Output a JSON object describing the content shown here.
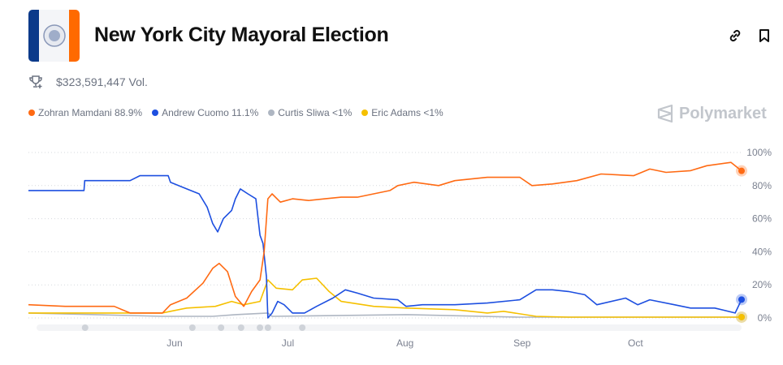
{
  "header": {
    "title": "New York City Mayoral Election",
    "volume": "$323,591,447 Vol.",
    "brand": "Polymarket"
  },
  "icons": {
    "link": "link-icon",
    "bookmark": "bookmark-icon",
    "trophy": "trophy-icon"
  },
  "legend": [
    {
      "label": "Zohran Mamdani 88.9%",
      "color": "#ff6a13"
    },
    {
      "label": "Andrew Cuomo 11.1%",
      "color": "#1d4fe0"
    },
    {
      "label": "Curtis Sliwa <1%",
      "color": "#aeb6c2"
    },
    {
      "label": "Eric Adams <1%",
      "color": "#f5c000"
    }
  ],
  "chart_data": {
    "type": "line",
    "x_unit": "days since Jun 1",
    "xlim": [
      -38.7,
      150.1
    ],
    "ylim": [
      0,
      100
    ],
    "y_ticks": [
      {
        "v": 100,
        "label": "100%"
      },
      {
        "v": 80,
        "label": "80%"
      },
      {
        "v": 60,
        "label": "60%"
      },
      {
        "v": 40,
        "label": "40%"
      },
      {
        "v": 20,
        "label": "20%"
      },
      {
        "v": 0,
        "label": "0%"
      }
    ],
    "x_ticks": [
      {
        "v": 0,
        "label": "Jun"
      },
      {
        "v": 30,
        "label": "Jul"
      },
      {
        "v": 61,
        "label": "Aug"
      },
      {
        "v": 92,
        "label": "Sep"
      },
      {
        "v": 122,
        "label": "Oct"
      }
    ],
    "grid": true,
    "series": [
      {
        "name": "Curtis Sliwa",
        "color": "#aeb6c2",
        "x": [
          -38.7,
          -3.2,
          10.1,
          16.1,
          24.7,
          25.8,
          61.3,
          91.4,
          150.1
        ],
        "y": [
          3,
          1,
          1,
          2,
          3,
          1,
          2,
          0.5,
          0.5
        ]
      },
      {
        "name": "Eric Adams",
        "color": "#f5c000",
        "x": [
          -38.7,
          -3.2,
          -1.1,
          3.2,
          10.8,
          15.1,
          18.3,
          22.6,
          24.7,
          26.9,
          31.2,
          33.8,
          37.6,
          40.9,
          44.1,
          52.7,
          61.3,
          74.2,
          82.8,
          87.1,
          95.7,
          104.3,
          150.1
        ],
        "y": [
          3,
          3,
          4,
          6,
          7,
          10,
          8,
          10,
          23,
          18,
          17,
          23,
          24,
          16,
          10,
          7,
          6,
          5,
          3,
          4,
          1,
          0.5,
          0.5
        ]
      },
      {
        "name": "Andrew Cuomo",
        "color": "#1d4fe0",
        "x": [
          -38.7,
          -24,
          -23.8,
          -11.8,
          -9.2,
          -1.7,
          -1.1,
          3.2,
          6.5,
          8.6,
          10.1,
          11.4,
          12.9,
          15.1,
          16.1,
          17.4,
          19.4,
          21.5,
          22.6,
          23.4,
          24.3,
          24.7,
          25.8,
          27.3,
          29,
          31.2,
          34.4,
          37.6,
          41.9,
          45.2,
          48.4,
          52.7,
          59.1,
          61.3,
          65.6,
          74.2,
          82.8,
          91.4,
          95.7,
          100,
          104.3,
          108.6,
          111.8,
          119.4,
          122.6,
          125.8,
          132.3,
          136.6,
          143,
          148.4,
          150.1
        ],
        "y": [
          77,
          77,
          83,
          83,
          86,
          86,
          82,
          78,
          75,
          67,
          57,
          52,
          60,
          65,
          72,
          78,
          75,
          72,
          50,
          45,
          25,
          0,
          3,
          10,
          8,
          3,
          3,
          7,
          12,
          17,
          15,
          12,
          11,
          7,
          8,
          8,
          9,
          11,
          17,
          17,
          16,
          14,
          8,
          12,
          8,
          11,
          8,
          6,
          6,
          3,
          11.1
        ]
      },
      {
        "name": "Zohran Mamdani",
        "color": "#ff6a13",
        "x": [
          -38.7,
          -29,
          -16,
          -11.8,
          -3.2,
          -1.1,
          3.2,
          7.5,
          10.1,
          11.8,
          14,
          16.1,
          18.3,
          20.4,
          22.6,
          23.7,
          24.7,
          25.8,
          28,
          31.2,
          35.5,
          39.8,
          44.1,
          48.4,
          52.7,
          57,
          59.1,
          63.4,
          69.9,
          74.2,
          82.8,
          91.4,
          94.6,
          100,
          106.5,
          112.9,
          121.5,
          125.8,
          130.1,
          136.6,
          140.9,
          147.3,
          150.1
        ],
        "y": [
          8,
          7,
          7,
          3,
          3,
          8,
          12,
          21,
          30,
          33,
          28,
          13,
          7,
          16,
          23,
          40,
          72,
          75,
          70,
          72,
          71,
          72,
          73,
          73,
          75,
          77,
          80,
          82,
          80,
          83,
          85,
          85,
          80,
          81,
          83,
          87,
          86,
          90,
          88,
          89,
          92,
          94,
          88.9
        ]
      }
    ],
    "event_markers": [
      -23.7,
      4.7,
      12.3,
      17.6,
      22.6,
      24.7,
      33.8
    ]
  }
}
